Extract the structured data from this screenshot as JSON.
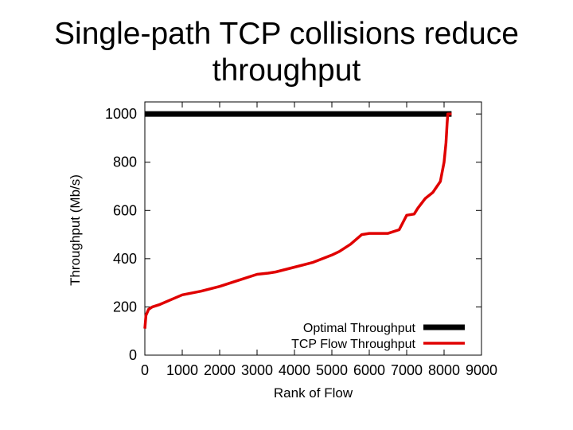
{
  "slide": {
    "title_line1": "Single-path TCP collisions reduce",
    "title_line2": "throughput"
  },
  "colors": {
    "optimal": "#000000",
    "tcp": "#e00000",
    "axis": "#000000"
  },
  "chart_data": {
    "type": "line",
    "title": "",
    "xlabel": "Rank of Flow",
    "ylabel": "Throughput (Mb/s)",
    "xlim": [
      0,
      9000
    ],
    "ylim": [
      0,
      1050
    ],
    "xticks": [
      0,
      1000,
      2000,
      3000,
      4000,
      5000,
      6000,
      7000,
      8000,
      9000
    ],
    "yticks": [
      0,
      200,
      400,
      600,
      800,
      1000
    ],
    "grid": false,
    "legend_position": "bottom-right",
    "series": [
      {
        "name": "Optimal Throughput",
        "color": "#000000",
        "x": [
          0,
          8200
        ],
        "y": [
          1000,
          1000
        ]
      },
      {
        "name": "TCP Flow Throughput",
        "color": "#e00000",
        "x": [
          0,
          30,
          100,
          200,
          400,
          700,
          1000,
          1500,
          2000,
          2500,
          3000,
          3300,
          3500,
          4000,
          4500,
          5000,
          5200,
          5500,
          5800,
          6000,
          6500,
          6800,
          7000,
          7200,
          7300,
          7500,
          7700,
          7900,
          8000,
          8050,
          8080,
          8100,
          8200
        ],
        "y": [
          110,
          165,
          190,
          200,
          210,
          230,
          250,
          265,
          285,
          310,
          335,
          340,
          345,
          365,
          385,
          415,
          430,
          460,
          500,
          505,
          505,
          520,
          580,
          585,
          610,
          650,
          675,
          720,
          800,
          880,
          960,
          1000,
          1000
        ]
      }
    ]
  }
}
